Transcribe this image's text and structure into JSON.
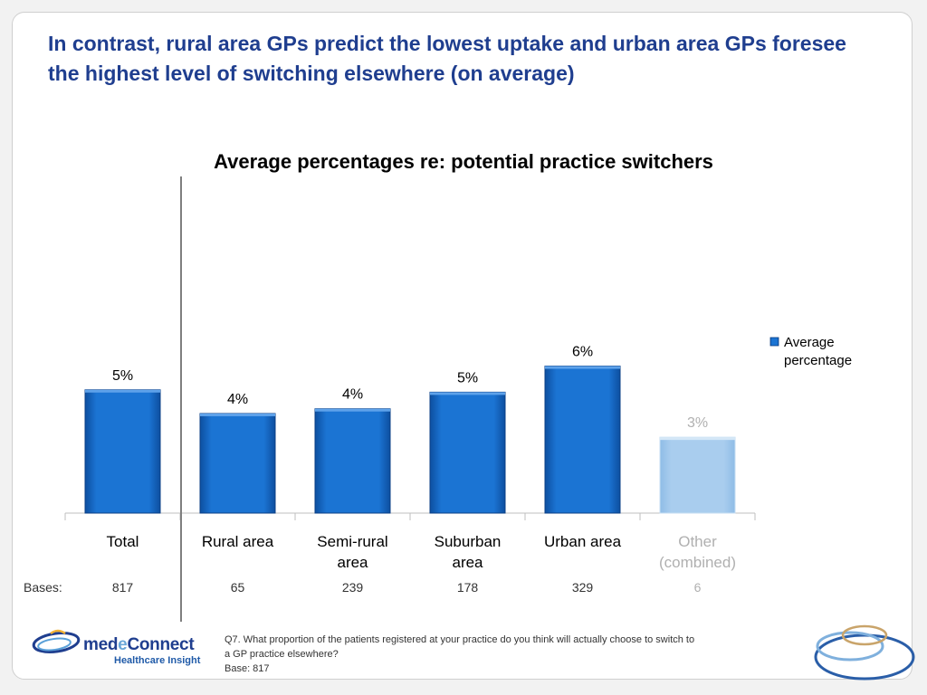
{
  "slide": {
    "headline": "In contrast, rural area GPs predict the lowest uptake and urban area GPs foresee the highest level of switching elsewhere (on average)"
  },
  "chart_data": {
    "type": "bar",
    "title": "Average percentages re: potential practice switchers",
    "categories": [
      "Total",
      "Rural area",
      "Semi-rural area",
      "Suburban area",
      "Urban area",
      "Other (combined)"
    ],
    "category_lines": [
      [
        "Total"
      ],
      [
        "Rural area"
      ],
      [
        "Semi-rural",
        "area"
      ],
      [
        "Suburban",
        "area"
      ],
      [
        "Urban area"
      ],
      [
        "Other",
        "(combined)"
      ]
    ],
    "values": [
      5,
      4,
      4,
      5,
      6,
      3
    ],
    "value_labels": [
      "5%",
      "4%",
      "4%",
      "5%",
      "6%",
      "3%"
    ],
    "precise_values": [
      5.2,
      4.2,
      4.4,
      5.1,
      6.2,
      3.2
    ],
    "ylim": [
      0,
      10
    ],
    "grid": false,
    "series_name": "Average percentage",
    "legend_lines": [
      "Average",
      "percentage"
    ],
    "legend_position": "right",
    "faded_category_index": 5,
    "colors": {
      "bar": "#1b74d3",
      "bar_dark": "#0d4fa0",
      "faded_bar": "#a9cdee",
      "text": "#000000",
      "faded_text": "#b0b0b0",
      "axis": "#bfbfbf",
      "divider": "#7f7f7f"
    },
    "bases_label": "Bases:",
    "bases": [
      "817",
      "65",
      "239",
      "178",
      "329",
      "6"
    ]
  },
  "footnote": {
    "line1": "Q7. What proportion of the patients registered at your practice do you think will actually choose to switch to",
    "line2": "a GP practice elsewhere?",
    "line3": "Base: 817"
  },
  "logo": {
    "text_before": "med",
    "text_accent": "e",
    "text_after": "Connect",
    "subtitle": "Healthcare Insight"
  }
}
